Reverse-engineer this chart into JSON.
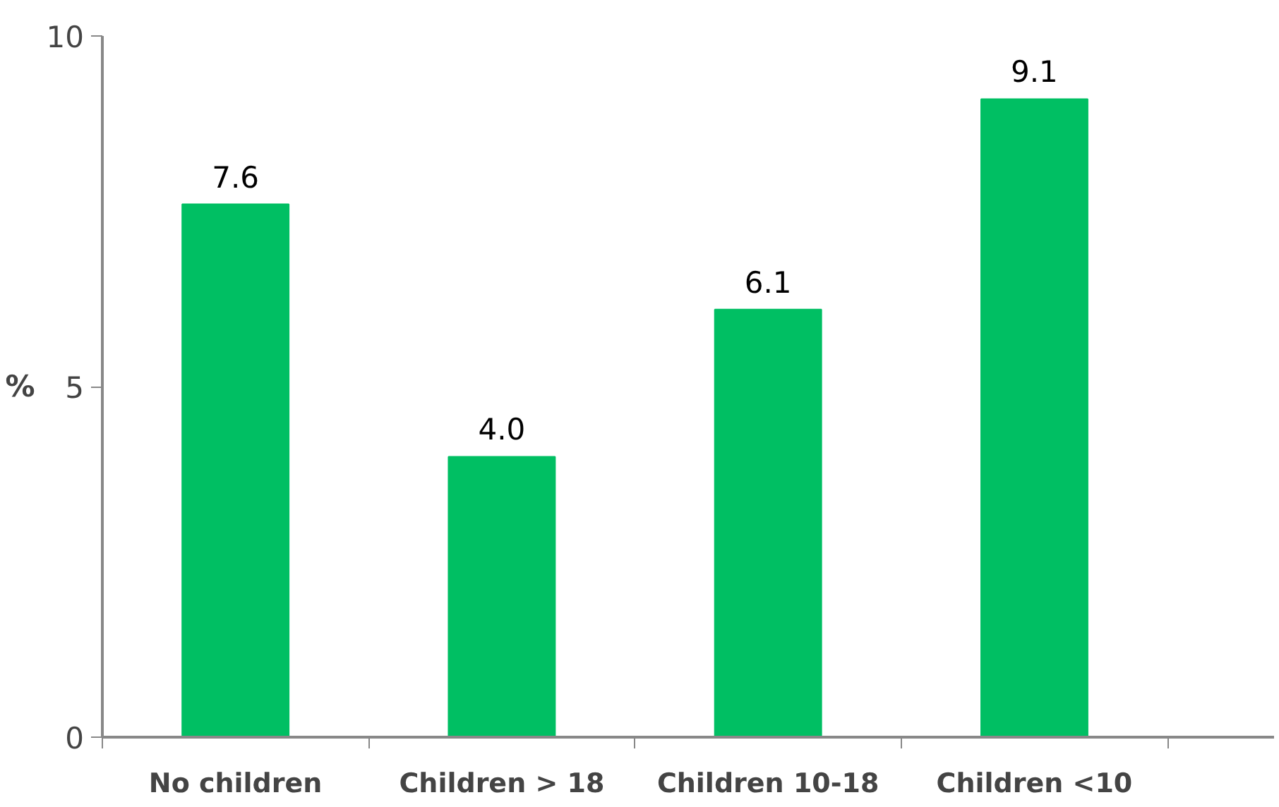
{
  "chart_data": {
    "type": "bar",
    "categories": [
      "No children",
      "Children > 18",
      "Children 10-18",
      "Children <10"
    ],
    "values": [
      7.6,
      4.0,
      6.1,
      9.1
    ],
    "color": "#00bf63",
    "ylabel": "%",
    "ylim": [
      0,
      10
    ],
    "yticks": [
      0,
      5,
      10
    ],
    "value_labels": [
      "7.6",
      "4.0",
      "6.1",
      "9.1"
    ]
  }
}
